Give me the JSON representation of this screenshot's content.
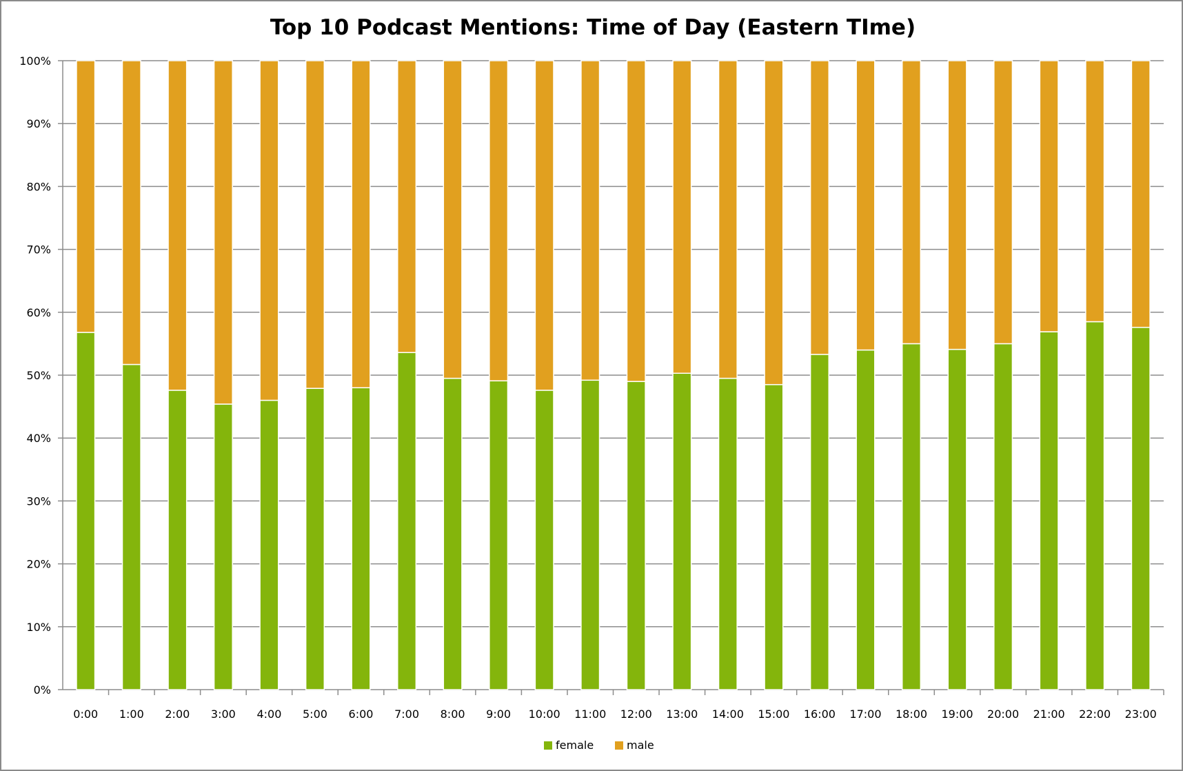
{
  "chart_data": {
    "type": "bar",
    "stacked": "percent",
    "title": "Top 10 Podcast Mentions: Time of Day (Eastern TIme)",
    "xlabel": "",
    "ylabel": "",
    "ylim": [
      0,
      100
    ],
    "yticks": [
      "0%",
      "10%",
      "20%",
      "30%",
      "40%",
      "50%",
      "60%",
      "70%",
      "80%",
      "90%",
      "100%"
    ],
    "grid": true,
    "legend_position": "bottom",
    "categories": [
      "0:00",
      "1:00",
      "2:00",
      "3:00",
      "4:00",
      "5:00",
      "6:00",
      "7:00",
      "8:00",
      "9:00",
      "10:00",
      "11:00",
      "12:00",
      "13:00",
      "14:00",
      "15:00",
      "16:00",
      "17:00",
      "18:00",
      "19:00",
      "20:00",
      "21:00",
      "22:00",
      "23:00"
    ],
    "series": [
      {
        "name": "female",
        "color": "#84b50c",
        "values": [
          56.8,
          51.7,
          47.6,
          45.4,
          46.0,
          47.9,
          48.0,
          53.6,
          49.5,
          49.1,
          47.6,
          49.2,
          49.0,
          50.3,
          49.5,
          48.5,
          53.3,
          54.0,
          55.0,
          54.1,
          55.0,
          56.9,
          58.5,
          57.6
        ]
      },
      {
        "name": "male",
        "color": "#e1a01f",
        "values": [
          43.2,
          48.3,
          52.4,
          54.6,
          54.0,
          52.1,
          52.0,
          46.4,
          50.5,
          50.9,
          52.4,
          50.8,
          51.0,
          49.7,
          50.5,
          51.5,
          46.7,
          46.0,
          45.0,
          45.9,
          45.0,
          43.1,
          41.5,
          42.4
        ]
      }
    ]
  }
}
